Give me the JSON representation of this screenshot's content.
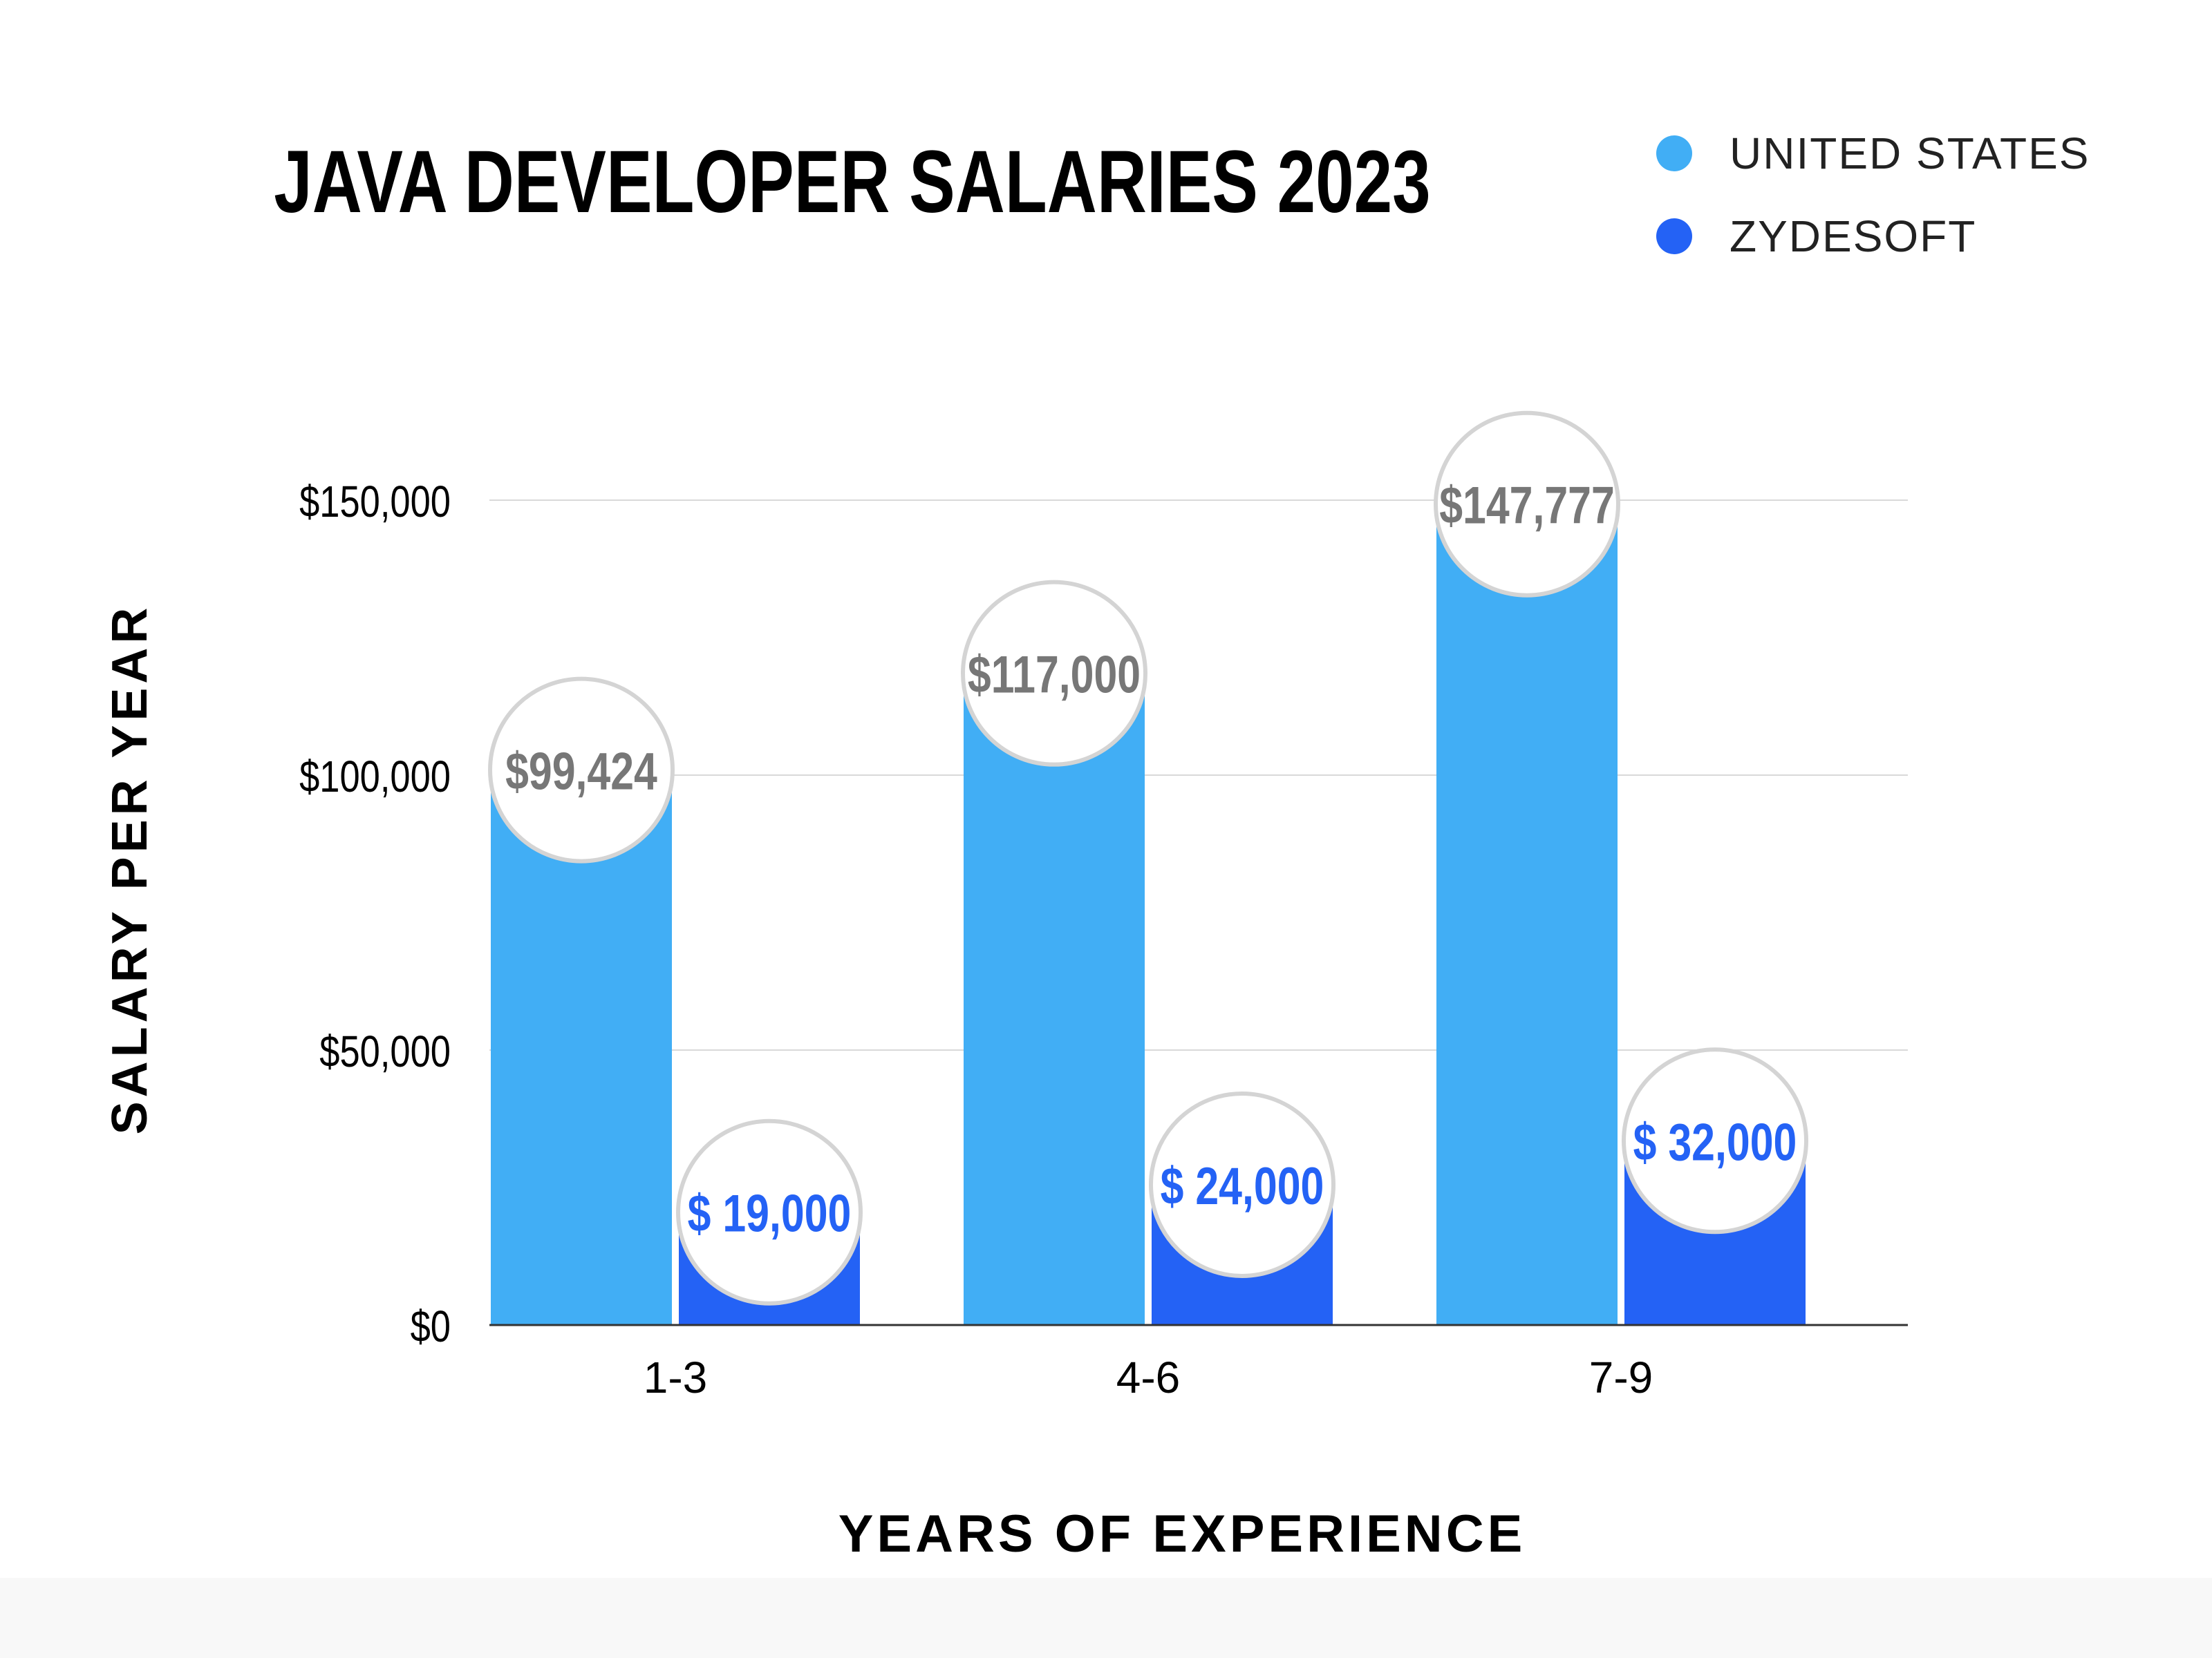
{
  "colors": {
    "united_states": "#41aef5",
    "zydesoft": "#2462f5",
    "us_label": "#777777",
    "grid": "#d9d9d9",
    "axis": "#333333",
    "text": "#000000",
    "bubble_stroke": "#d4d4d4"
  },
  "chart_data": {
    "type": "bar",
    "title": "JAVA DEVELOPER SALARIES 2023",
    "xlabel": "YEARS OF EXPERIENCE",
    "ylabel": "SALARY PER YEAR",
    "categories": [
      "1-3",
      "4-6",
      "7-9"
    ],
    "series": [
      {
        "name": "UNITED STATES",
        "values": [
          99424,
          117000,
          147777
        ],
        "labels": [
          "$99,424",
          "$117,000",
          "$147,777"
        ]
      },
      {
        "name": "ZYDESOFT",
        "values": [
          19000,
          24000,
          32000
        ],
        "labels": [
          "$ 19,000",
          "$ 24,000",
          "$ 32,000"
        ]
      }
    ],
    "yticks": [
      0,
      50000,
      100000,
      150000
    ],
    "ytick_labels": [
      "$0",
      "$50,000",
      "$100,000",
      "$150,000"
    ],
    "ylim": [
      0,
      150000
    ],
    "grid": true,
    "legend_position": "top-right"
  }
}
